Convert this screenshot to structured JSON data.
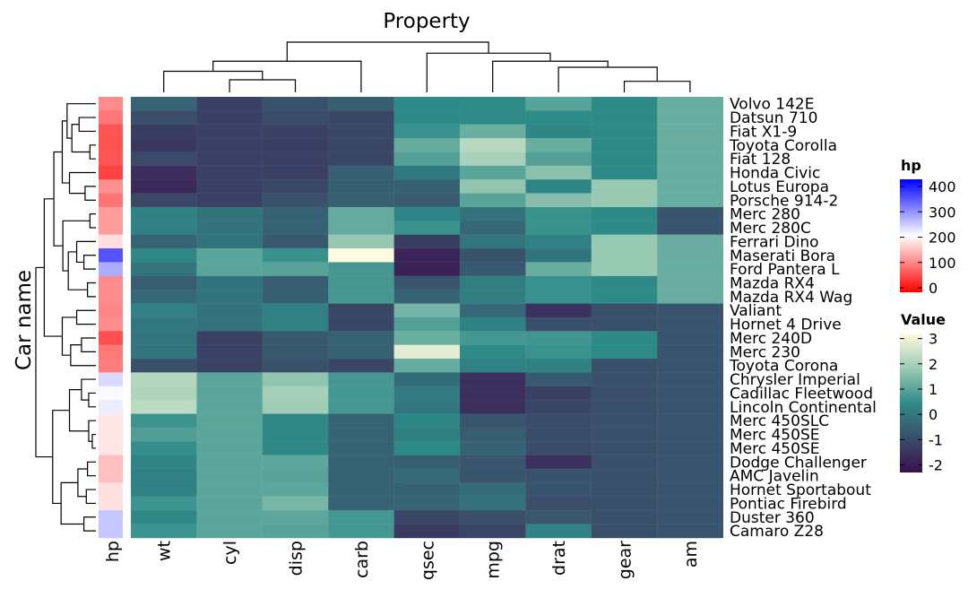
{
  "chart_data": {
    "type": "heatmap",
    "title": "Property",
    "ylabel": "Car name",
    "columns": [
      "wt",
      "cyl",
      "disp",
      "carb",
      "qsec",
      "mpg",
      "drat",
      "gear",
      "am"
    ],
    "rows": [
      "Volvo 142E",
      "Datsun 710",
      "Fiat X1-9",
      "Toyota Corolla",
      "Fiat 128",
      "Honda Civic",
      "Lotus Europa",
      "Porsche 914-2",
      "Merc 280",
      "Merc 280C",
      "Ferrari Dino",
      "Maserati Bora",
      "Ford Pantera L",
      "Mazda RX4",
      "Mazda RX4 Wag",
      "Valiant",
      "Hornet 4 Drive",
      "Merc 240D",
      "Merc 230",
      "Toyota Corona",
      "Chrysler Imperial",
      "Cadillac Fleetwood",
      "Lincoln Continental",
      "Merc 450SLC",
      "Merc 450SE",
      "Merc 450SE",
      "Dodge Challenger",
      "AMC Javelin",
      "Hornet Sportabout",
      "Pontiac Firebird",
      "Duster 360",
      "Camaro Z28"
    ],
    "values": [
      [
        -0.45,
        -1.22,
        -0.89,
        -0.56,
        0.43,
        0.45,
        0.96,
        0.42,
        1.19
      ],
      [
        -0.92,
        -1.22,
        -0.99,
        -1.12,
        0.43,
        0.45,
        0.45,
        0.42,
        1.19
      ],
      [
        -1.31,
        -1.22,
        -1.22,
        -1.12,
        0.58,
        1.2,
        0.33,
        0.42,
        1.19
      ],
      [
        -1.41,
        -1.22,
        -1.28,
        -1.12,
        1.15,
        2.2,
        1.17,
        0.42,
        1.19
      ],
      [
        -1.04,
        -1.22,
        -1.23,
        -1.12,
        0.9,
        2.0,
        0.9,
        0.42,
        1.19
      ],
      [
        -1.64,
        -1.22,
        -1.25,
        -0.56,
        0.04,
        1.0,
        1.6,
        0.42,
        1.19
      ],
      [
        -1.74,
        -1.22,
        -1.09,
        -0.56,
        -0.52,
        1.7,
        0.32,
        1.78,
        1.19
      ],
      [
        -1.1,
        -1.22,
        -0.89,
        -0.56,
        -0.64,
        0.99,
        1.55,
        1.78,
        1.19
      ],
      [
        0.23,
        -0.1,
        -0.51,
        1.12,
        0.32,
        -0.15,
        0.6,
        0.42,
        -0.81
      ],
      [
        0.23,
        -0.1,
        -0.51,
        1.12,
        0.59,
        -0.38,
        0.6,
        0.42,
        -0.81
      ],
      [
        -0.45,
        -0.1,
        -0.69,
        1.75,
        -1.31,
        -0.06,
        0.22,
        1.78,
        1.19
      ],
      [
        0.36,
        1.01,
        0.57,
        3.21,
        -1.82,
        -0.84,
        -0.11,
        1.78,
        1.19
      ],
      [
        -0.05,
        1.01,
        0.97,
        0.74,
        -1.87,
        -0.71,
        1.17,
        1.78,
        1.19
      ],
      [
        -0.61,
        -0.1,
        -0.57,
        0.74,
        -0.78,
        0.15,
        0.57,
        0.42,
        1.19
      ],
      [
        -0.35,
        -0.1,
        -0.57,
        0.74,
        -0.46,
        0.15,
        0.57,
        0.42,
        1.19
      ],
      [
        0.25,
        -0.1,
        0.22,
        -1.12,
        1.33,
        -0.33,
        -1.56,
        -0.93,
        -0.81
      ],
      [
        -0.0,
        -0.1,
        0.22,
        -1.12,
        0.89,
        0.22,
        -0.92,
        -0.93,
        -0.81
      ],
      [
        -0.07,
        -1.22,
        -0.68,
        -0.5,
        1.2,
        0.72,
        0.68,
        0.42,
        -0.81
      ],
      [
        -0.07,
        -1.22,
        -0.73,
        -0.5,
        2.83,
        0.45,
        0.6,
        0.42,
        -0.81
      ],
      [
        -0.91,
        -1.22,
        -0.89,
        -1.12,
        1.15,
        0.23,
        0.19,
        -0.93,
        -0.81
      ],
      [
        2.17,
        1.01,
        1.69,
        0.74,
        -0.24,
        -1.61,
        -0.69,
        -0.93,
        -0.81
      ],
      [
        2.08,
        1.01,
        1.95,
        0.74,
        0.07,
        -1.61,
        -1.25,
        -0.93,
        -0.81
      ],
      [
        2.26,
        1.01,
        1.85,
        0.74,
        -0.02,
        -1.61,
        -1.12,
        -0.93,
        -0.81
      ],
      [
        0.64,
        1.01,
        0.36,
        -0.5,
        0.34,
        -0.81,
        -0.98,
        -0.93,
        -0.81
      ],
      [
        0.87,
        1.01,
        0.36,
        -0.5,
        0.19,
        -0.61,
        -0.98,
        -0.93,
        -0.81
      ],
      [
        0.52,
        1.01,
        0.36,
        -0.5,
        0.42,
        -0.47,
        -0.98,
        -0.93,
        -0.81
      ],
      [
        0.31,
        1.01,
        1.03,
        -0.5,
        -0.55,
        -0.76,
        -1.56,
        -0.93,
        -0.81
      ],
      [
        0.22,
        1.01,
        0.96,
        -0.5,
        -0.31,
        -0.81,
        -0.84,
        -0.93,
        -0.81
      ],
      [
        0.23,
        1.01,
        1.04,
        -0.5,
        -0.46,
        -0.23,
        -0.84,
        -0.93,
        -0.81
      ],
      [
        0.64,
        1.01,
        1.37,
        -0.5,
        -0.45,
        -0.15,
        -0.97,
        -0.93,
        -0.81
      ],
      [
        0.36,
        1.01,
        1.04,
        0.74,
        -1.12,
        -0.96,
        -0.72,
        -0.93,
        -0.81
      ],
      [
        0.64,
        1.01,
        0.97,
        0.74,
        -1.36,
        -1.13,
        0.25,
        -0.93,
        -0.81
      ]
    ],
    "hp": [
      109,
      93,
      66,
      65,
      66,
      52,
      113,
      91,
      123,
      123,
      175,
      335,
      264,
      110,
      110,
      105,
      110,
      62,
      95,
      97,
      230,
      205,
      215,
      180,
      180,
      180,
      150,
      150,
      175,
      175,
      245,
      245
    ],
    "hp_legend": {
      "title": "hp",
      "range": [
        0,
        400
      ],
      "ticks": [
        "0",
        "100",
        "200",
        "300",
        "400"
      ],
      "colors": [
        "#ff0000",
        "#ffffff",
        "#0000ff"
      ]
    },
    "value_legend": {
      "title": "Value",
      "range": [
        -2.3,
        3.2
      ],
      "ticks": [
        "-2",
        "-1",
        "0",
        "1",
        "2",
        "3"
      ],
      "colors": [
        "#3b0f4f",
        "#3a4f6a",
        "#2e8b88",
        "#9ccbb4",
        "#fffae0"
      ]
    },
    "hp_label": "hp",
    "col_dendrogram": [
      [
        1,
        2,
        0.25
      ],
      [
        0,
        9,
        0.42
      ],
      [
        3,
        10,
        0.62
      ],
      [
        7,
        8,
        0.22
      ],
      [
        6,
        12,
        0.5
      ],
      [
        5,
        13,
        0.62
      ],
      [
        4,
        14,
        0.78
      ],
      [
        11,
        15,
        1.0
      ]
    ],
    "row_dendrogram": [
      [
        3,
        4,
        0.1
      ],
      [
        1,
        2,
        0.28
      ],
      [
        32,
        33,
        0.4
      ],
      [
        0,
        34,
        0.48
      ],
      [
        6,
        7,
        0.18
      ],
      [
        5,
        36,
        0.44
      ],
      [
        35,
        37,
        0.56
      ],
      [
        8,
        9,
        0.1
      ],
      [
        11,
        12,
        0.2
      ],
      [
        10,
        40,
        0.32
      ],
      [
        13,
        14,
        0.14
      ],
      [
        41,
        42,
        0.46
      ],
      [
        39,
        43,
        0.55
      ],
      [
        38,
        44,
        0.7
      ],
      [
        17,
        18,
        0.24
      ],
      [
        19,
        46,
        0.42
      ],
      [
        15,
        16,
        0.32
      ],
      [
        47,
        48,
        0.56
      ],
      [
        45,
        49,
        0.86
      ],
      [
        21,
        22,
        0.12
      ],
      [
        20,
        51,
        0.24
      ],
      [
        24,
        25,
        0.06
      ],
      [
        23,
        53,
        0.12
      ],
      [
        52,
        54,
        0.44
      ],
      [
        26,
        27,
        0.14
      ],
      [
        28,
        29,
        0.16
      ],
      [
        56,
        57,
        0.3
      ],
      [
        30,
        31,
        0.2
      ],
      [
        58,
        59,
        0.58
      ],
      [
        55,
        60,
        0.72
      ],
      [
        50,
        61,
        1.0
      ]
    ]
  }
}
